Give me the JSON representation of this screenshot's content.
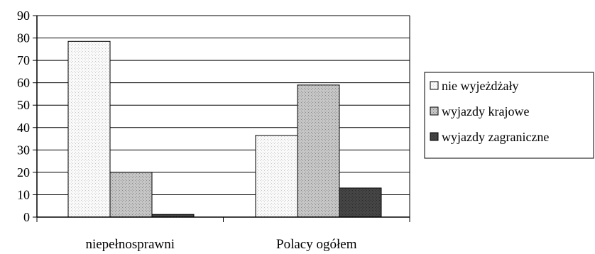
{
  "chart_data": {
    "type": "bar",
    "title": "",
    "xlabel": "",
    "ylabel": "",
    "categories": [
      "niepełnosprawni",
      "Polacy ogółem"
    ],
    "series": [
      {
        "name": "nie wyjeżdżały",
        "values": [
          78.5,
          36.5
        ],
        "color": "#f4f4f4",
        "pattern": "light-dots"
      },
      {
        "name": "wyjazdy krajowe",
        "values": [
          20,
          59
        ],
        "color": "#bdbdbd",
        "pattern": "gray-dots"
      },
      {
        "name": "wyjazdy zagraniczne",
        "values": [
          1.2,
          13
        ],
        "color": "#404040",
        "pattern": "dark"
      }
    ],
    "ylim": [
      0,
      90
    ],
    "yticks": [
      "0",
      "10",
      "20",
      "30",
      "40",
      "50",
      "60",
      "70",
      "80",
      "90"
    ],
    "grid": true,
    "legend_position": "right"
  }
}
